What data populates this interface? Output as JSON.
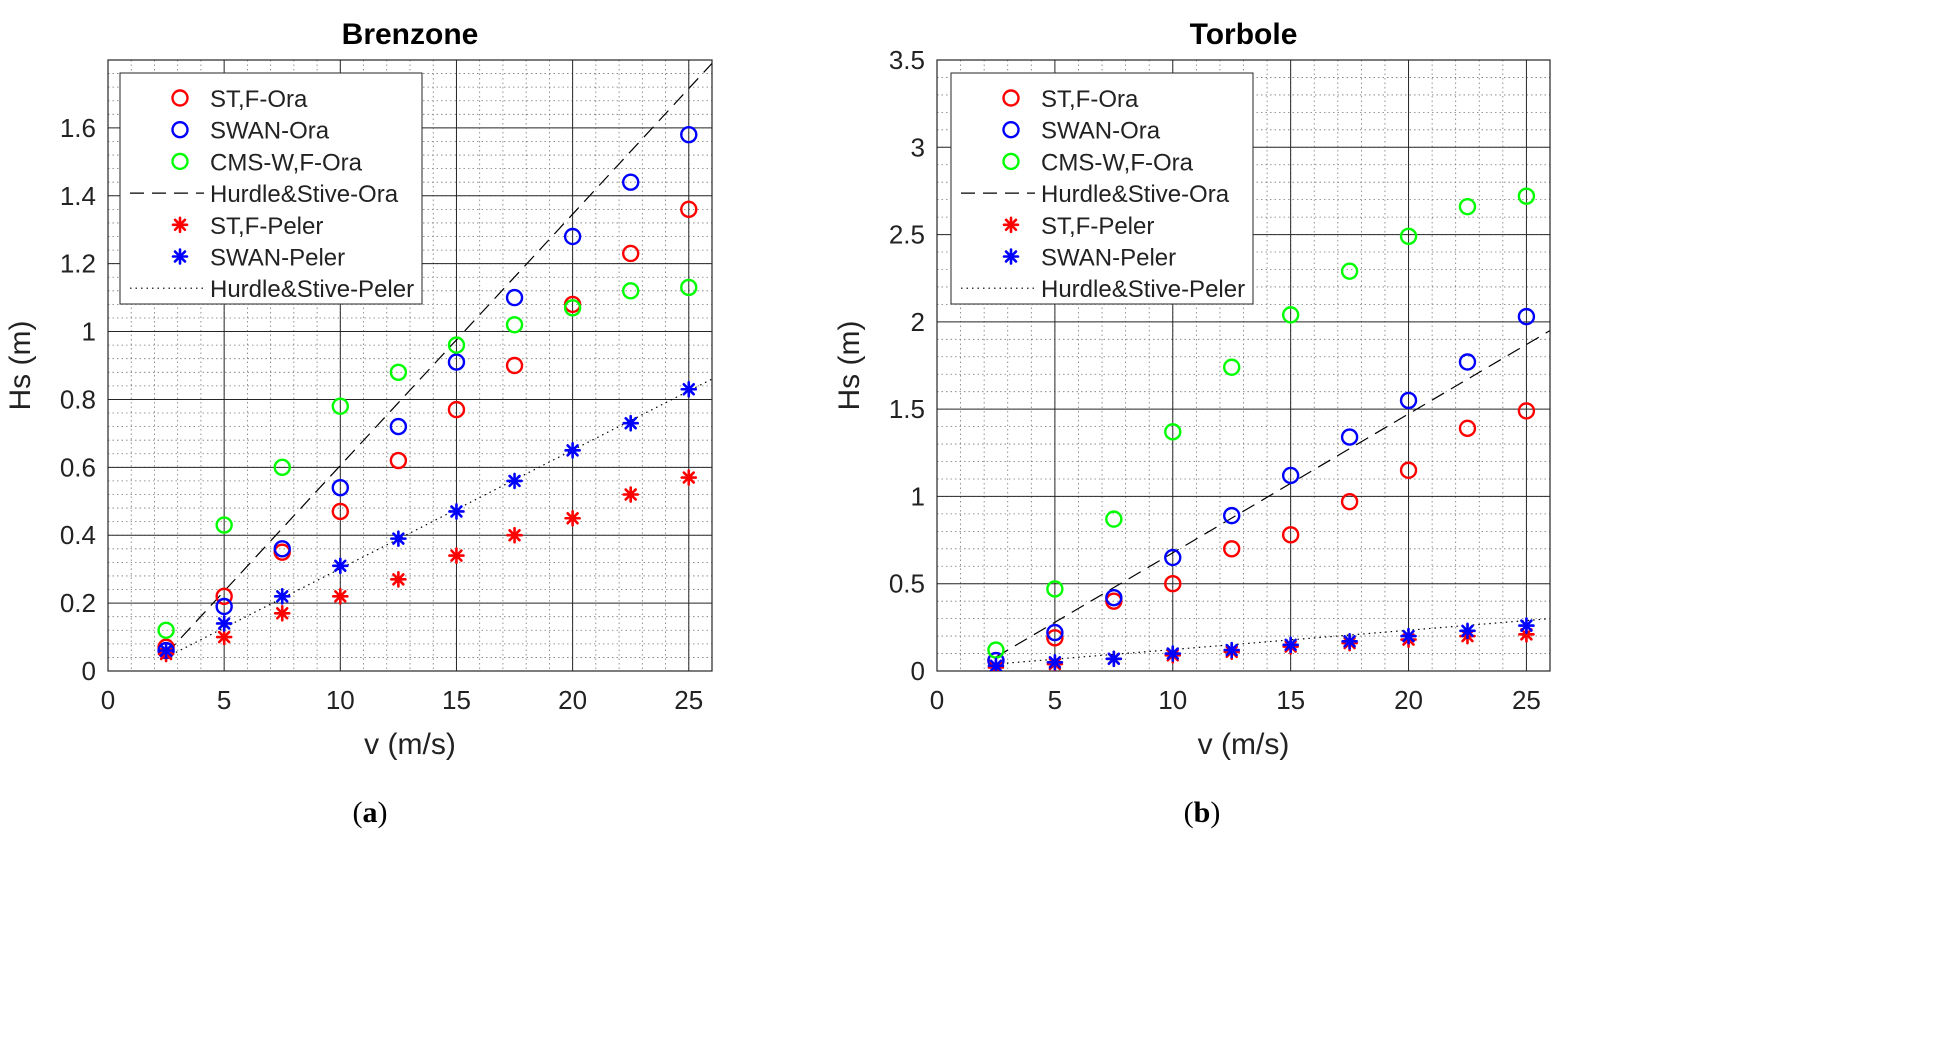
{
  "chart_data": [
    {
      "type": "scatter",
      "title": "Brenzone",
      "xlabel": "v (m/s)",
      "ylabel": "Hs (m)",
      "xlim": [
        0,
        26
      ],
      "ylim": [
        0,
        1.8
      ],
      "xticks": [
        0,
        5,
        10,
        15,
        20,
        25
      ],
      "yticks": [
        0,
        0.2,
        0.4,
        0.6,
        0.8,
        1,
        1.2,
        1.4,
        1.6
      ],
      "ytick_labels": [
        "0",
        "0.2",
        "0.4",
        "0.6",
        "0.8",
        "1",
        "1.2",
        "1.4",
        "1.6"
      ],
      "grid": "major and minor",
      "legend_position": "top-left",
      "caption": "(a)",
      "series": [
        {
          "name": "ST,F-Ora",
          "marker": "circle",
          "color": "#ff0000",
          "x": [
            2.5,
            5,
            7.5,
            10,
            12.5,
            15,
            17.5,
            20,
            22.5,
            25
          ],
          "y": [
            0.07,
            0.22,
            0.35,
            0.47,
            0.62,
            0.77,
            0.9,
            1.08,
            1.23,
            1.36
          ]
        },
        {
          "name": "SWAN-Ora",
          "marker": "circle",
          "color": "#0000ff",
          "x": [
            2.5,
            5,
            7.5,
            10,
            12.5,
            15,
            17.5,
            20,
            22.5,
            25
          ],
          "y": [
            0.06,
            0.19,
            0.36,
            0.54,
            0.72,
            0.91,
            1.1,
            1.28,
            1.44,
            1.58
          ]
        },
        {
          "name": "CMS-W,F-Ora",
          "marker": "circle",
          "color": "#00ff00",
          "x": [
            2.5,
            5,
            7.5,
            10,
            12.5,
            15,
            17.5,
            20,
            22.5,
            25
          ],
          "y": [
            0.12,
            0.43,
            0.6,
            0.78,
            0.88,
            0.96,
            1.02,
            1.07,
            1.12,
            1.13
          ]
        },
        {
          "name": "Hurdle&Stive-Ora",
          "line": "dashed",
          "color": "#000000",
          "x": [
            2.5,
            26
          ],
          "y": [
            0.05,
            1.79
          ]
        },
        {
          "name": "ST,F-Peler",
          "marker": "star",
          "color": "#ff0000",
          "x": [
            2.5,
            5,
            7.5,
            10,
            12.5,
            15,
            17.5,
            20,
            22.5,
            25
          ],
          "y": [
            0.05,
            0.1,
            0.17,
            0.22,
            0.27,
            0.34,
            0.4,
            0.45,
            0.52,
            0.57
          ]
        },
        {
          "name": "SWAN-Peler",
          "marker": "star",
          "color": "#0000ff",
          "x": [
            2.5,
            5,
            7.5,
            10,
            12.5,
            15,
            17.5,
            20,
            22.5,
            25
          ],
          "y": [
            0.06,
            0.14,
            0.22,
            0.31,
            0.39,
            0.47,
            0.56,
            0.65,
            0.73,
            0.83
          ]
        },
        {
          "name": "Hurdle&Stive-Peler",
          "line": "dotted",
          "color": "#000000",
          "x": [
            2.5,
            26
          ],
          "y": [
            0.04,
            0.86
          ]
        }
      ]
    },
    {
      "type": "scatter",
      "title": "Torbole",
      "xlabel": "v (m/s)",
      "ylabel": "Hs (m)",
      "xlim": [
        0,
        26
      ],
      "ylim": [
        0,
        3.5
      ],
      "xticks": [
        0,
        5,
        10,
        15,
        20,
        25
      ],
      "yticks": [
        0,
        0.5,
        1,
        1.5,
        2,
        2.5,
        3,
        3.5
      ],
      "ytick_labels": [
        "0",
        "0.5",
        "1",
        "1.5",
        "2",
        "2.5",
        "3",
        "3.5"
      ],
      "grid": "major and minor",
      "legend_position": "top-left",
      "caption": "(b)",
      "series": [
        {
          "name": "ST,F-Ora",
          "marker": "circle",
          "color": "#ff0000",
          "x": [
            2.5,
            5,
            7.5,
            10,
            12.5,
            15,
            17.5,
            20,
            22.5,
            25
          ],
          "y": [
            0.06,
            0.19,
            0.4,
            0.5,
            0.7,
            0.78,
            0.97,
            1.15,
            1.39,
            1.49
          ]
        },
        {
          "name": "SWAN-Ora",
          "marker": "circle",
          "color": "#0000ff",
          "x": [
            2.5,
            5,
            7.5,
            10,
            12.5,
            15,
            17.5,
            20,
            22.5,
            25
          ],
          "y": [
            0.06,
            0.22,
            0.42,
            0.65,
            0.89,
            1.12,
            1.34,
            1.55,
            1.77,
            2.03
          ]
        },
        {
          "name": "CMS-W,F-Ora",
          "marker": "circle",
          "color": "#00ff00",
          "x": [
            2.5,
            5,
            7.5,
            10,
            12.5,
            15,
            17.5,
            20,
            22.5,
            25
          ],
          "y": [
            0.12,
            0.47,
            0.87,
            1.37,
            1.74,
            2.04,
            2.29,
            2.49,
            2.66,
            2.72
          ]
        },
        {
          "name": "Hurdle&Stive-Ora",
          "line": "dashed",
          "color": "#000000",
          "x": [
            2.5,
            26
          ],
          "y": [
            0.08,
            1.95
          ]
        },
        {
          "name": "ST,F-Peler",
          "marker": "star",
          "color": "#ff0000",
          "x": [
            2.5,
            5,
            7.5,
            10,
            12.5,
            15,
            17.5,
            20,
            22.5,
            25
          ],
          "y": [
            0.02,
            0.04,
            0.07,
            0.09,
            0.11,
            0.14,
            0.16,
            0.18,
            0.2,
            0.21
          ]
        },
        {
          "name": "SWAN-Peler",
          "marker": "star",
          "color": "#0000ff",
          "x": [
            2.5,
            5,
            7.5,
            10,
            12.5,
            15,
            17.5,
            20,
            22.5,
            25
          ],
          "y": [
            0.03,
            0.05,
            0.07,
            0.1,
            0.12,
            0.15,
            0.17,
            0.2,
            0.23,
            0.26
          ]
        },
        {
          "name": "Hurdle&Stive-Peler",
          "line": "dotted",
          "color": "#000000",
          "x": [
            2.5,
            26
          ],
          "y": [
            0.04,
            0.3
          ]
        }
      ]
    }
  ]
}
